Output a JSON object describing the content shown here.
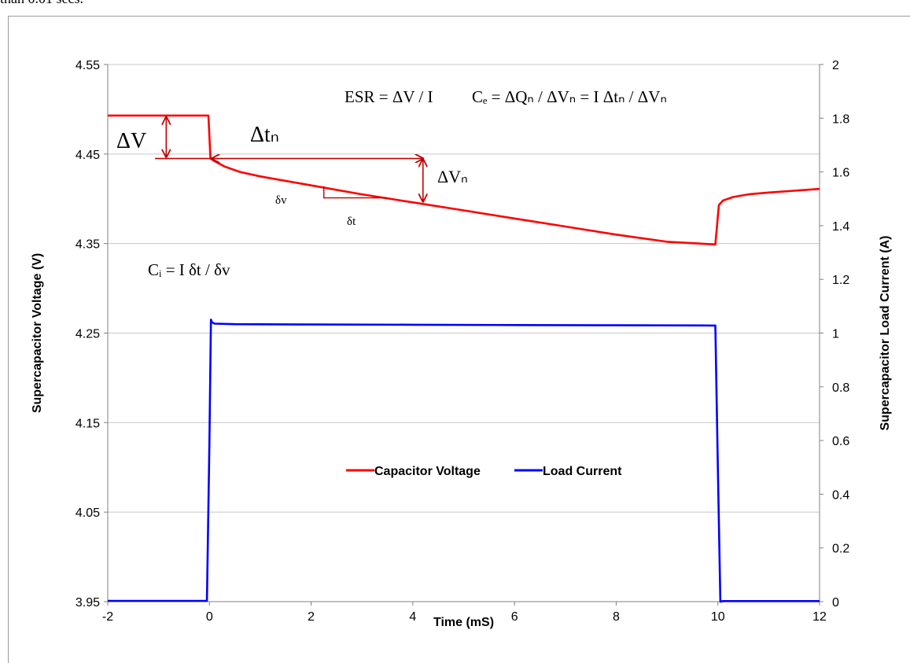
{
  "caption": "than 0.01 secs.",
  "chart_data": {
    "type": "line",
    "xlabel": "Time (mS)",
    "ylabel_left": "Supercapacitor Voltage (V)",
    "ylabel_right": "Supercapacitor Load Current (A)",
    "xlim": [
      -2,
      12
    ],
    "ylim_left": [
      3.95,
      4.55
    ],
    "ylim_right": [
      0,
      2
    ],
    "x_ticks": [
      "-2",
      "0",
      "2",
      "4",
      "6",
      "8",
      "10",
      "12"
    ],
    "y_left_ticks": [
      "3.95",
      "4.05",
      "4.15",
      "4.25",
      "4.35",
      "4.45",
      "4.55"
    ],
    "y_right_ticks": [
      "0",
      "0.2",
      "0.4",
      "0.6",
      "0.8",
      "1",
      "1.2",
      "1.4",
      "1.6",
      "1.8",
      "2"
    ],
    "grid": "horizontal",
    "legend_position": "center",
    "series": [
      {
        "name": "Capacitor Voltage",
        "axis": "left",
        "color": "#ff0000",
        "x": [
          -2,
          -0.02,
          0.02,
          0.1,
          0.3,
          0.6,
          1,
          2,
          3,
          4,
          5,
          6,
          7,
          8,
          9,
          9.95,
          10.02,
          10.1,
          10.3,
          10.6,
          11,
          11.5,
          12
        ],
        "y": [
          4.493,
          4.493,
          4.445,
          4.442,
          4.436,
          4.43,
          4.425,
          4.415,
          4.405,
          4.396,
          4.387,
          4.378,
          4.369,
          4.36,
          4.352,
          4.349,
          4.393,
          4.398,
          4.402,
          4.405,
          4.407,
          4.409,
          4.411
        ]
      },
      {
        "name": "Load Current",
        "axis": "right",
        "color": "#0000ff",
        "x": [
          -2,
          -0.05,
          0,
          0.03,
          0.05,
          0.1,
          0.5,
          2,
          4,
          6,
          8,
          9.95,
          10,
          10.05,
          10.1,
          10.3,
          12
        ],
        "y": [
          0.003,
          0.003,
          0.6,
          1.05,
          1.04,
          1.035,
          1.033,
          1.032,
          1.031,
          1.03,
          1.029,
          1.028,
          0.5,
          0.0,
          0.002,
          0.002,
          0.002
        ]
      }
    ],
    "annotations": {
      "esr_formula": "ESR = ΔV / I",
      "ce_formula": "Cₑ = ΔQₙ / ΔVₙ = I Δtₙ / ΔVₙ",
      "ci_formula": "Cᵢ = I δt / δv",
      "delta_v": "ΔV",
      "delta_tn": "Δtₙ",
      "delta_vn": "ΔVₙ",
      "small_dv": "δv",
      "small_dt": "δt"
    }
  },
  "colors": {
    "voltage": "#ff0000",
    "current": "#0000ff",
    "annotation_arrow": "#c00000",
    "grid": "#c8c8c8"
  }
}
